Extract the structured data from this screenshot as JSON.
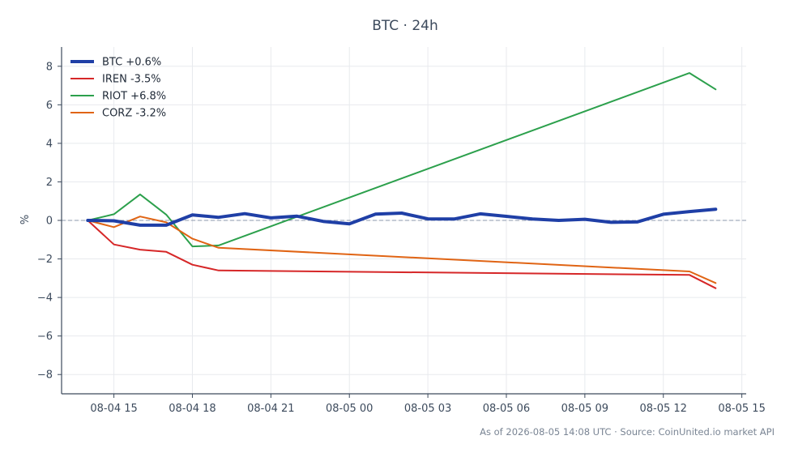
{
  "chart_data": {
    "type": "line",
    "title": "BTC · 24h",
    "xlabel": "",
    "ylabel": "%",
    "footer": "As of 2026-08-05 14:08 UTC · Source: CoinUnited.io market API",
    "ylim": [
      -9,
      9
    ],
    "yticks": [
      -8,
      -6,
      -4,
      -2,
      0,
      2,
      4,
      6,
      8
    ],
    "ytick_labels": [
      "−8",
      "−6",
      "−4",
      "−2",
      "0",
      "2",
      "4",
      "6",
      "8"
    ],
    "xlim": [
      "2026-08-04 13:00",
      "2026-08-05 15:10"
    ],
    "xticks": [
      "2026-08-04 15:00",
      "2026-08-04 18:00",
      "2026-08-04 21:00",
      "2026-08-05 00:00",
      "2026-08-05 03:00",
      "2026-08-05 06:00",
      "2026-08-05 09:00",
      "2026-08-05 12:00",
      "2026-08-05 15:00"
    ],
    "xtick_labels": [
      "08-04 15",
      "08-04 18",
      "08-04 21",
      "08-05 00",
      "08-05 03",
      "08-05 06",
      "08-05 09",
      "08-05 12",
      "08-05 15"
    ],
    "grid": true,
    "reference_line": 0,
    "legend_position": "top-left",
    "series": [
      {
        "name": "BTC +0.6%",
        "color": "#1f3fa6",
        "x": [
          "2026-08-04 14:00",
          "2026-08-04 15:00",
          "2026-08-04 16:00",
          "2026-08-04 17:00",
          "2026-08-04 18:00",
          "2026-08-04 19:00",
          "2026-08-04 20:00",
          "2026-08-04 21:00",
          "2026-08-04 22:00",
          "2026-08-04 23:00",
          "2026-08-05 00:00",
          "2026-08-05 01:00",
          "2026-08-05 02:00",
          "2026-08-05 03:00",
          "2026-08-05 04:00",
          "2026-08-05 05:00",
          "2026-08-05 06:00",
          "2026-08-05 07:00",
          "2026-08-05 08:00",
          "2026-08-05 09:00",
          "2026-08-05 10:00",
          "2026-08-05 11:00",
          "2026-08-05 12:00",
          "2026-08-05 13:00",
          "2026-08-05 14:00"
        ],
        "y": [
          0.0,
          -0.02,
          -0.25,
          -0.25,
          0.28,
          0.16,
          0.35,
          0.13,
          0.22,
          -0.05,
          -0.18,
          0.33,
          0.38,
          0.08,
          0.07,
          0.34,
          0.21,
          0.07,
          0.0,
          0.06,
          -0.1,
          -0.08,
          0.32,
          0.46,
          0.58
        ]
      },
      {
        "name": "IREN -3.5%",
        "color": "#d62728",
        "x": [
          "2026-08-04 14:00",
          "2026-08-04 15:00",
          "2026-08-04 16:00",
          "2026-08-04 17:00",
          "2026-08-04 18:00",
          "2026-08-04 19:00",
          "2026-08-05 13:00",
          "2026-08-05 14:00"
        ],
        "y": [
          0.0,
          -1.25,
          -1.52,
          -1.63,
          -2.3,
          -2.6,
          -2.83,
          -3.52
        ]
      },
      {
        "name": "RIOT +6.8%",
        "color": "#2ca04c",
        "x": [
          "2026-08-04 14:00",
          "2026-08-04 15:00",
          "2026-08-04 16:00",
          "2026-08-04 17:00",
          "2026-08-04 18:00",
          "2026-08-04 19:00",
          "2026-08-05 13:00",
          "2026-08-05 14:00"
        ],
        "y": [
          0.0,
          0.32,
          1.35,
          0.3,
          -1.35,
          -1.3,
          7.65,
          6.8
        ]
      },
      {
        "name": "CORZ -3.2%",
        "color": "#e06414",
        "x": [
          "2026-08-04 14:00",
          "2026-08-04 15:00",
          "2026-08-04 16:00",
          "2026-08-04 17:00",
          "2026-08-04 18:00",
          "2026-08-04 19:00",
          "2026-08-05 13:00",
          "2026-08-05 14:00"
        ],
        "y": [
          0.0,
          -0.35,
          0.2,
          -0.1,
          -0.95,
          -1.42,
          -2.65,
          -3.25
        ]
      }
    ]
  }
}
